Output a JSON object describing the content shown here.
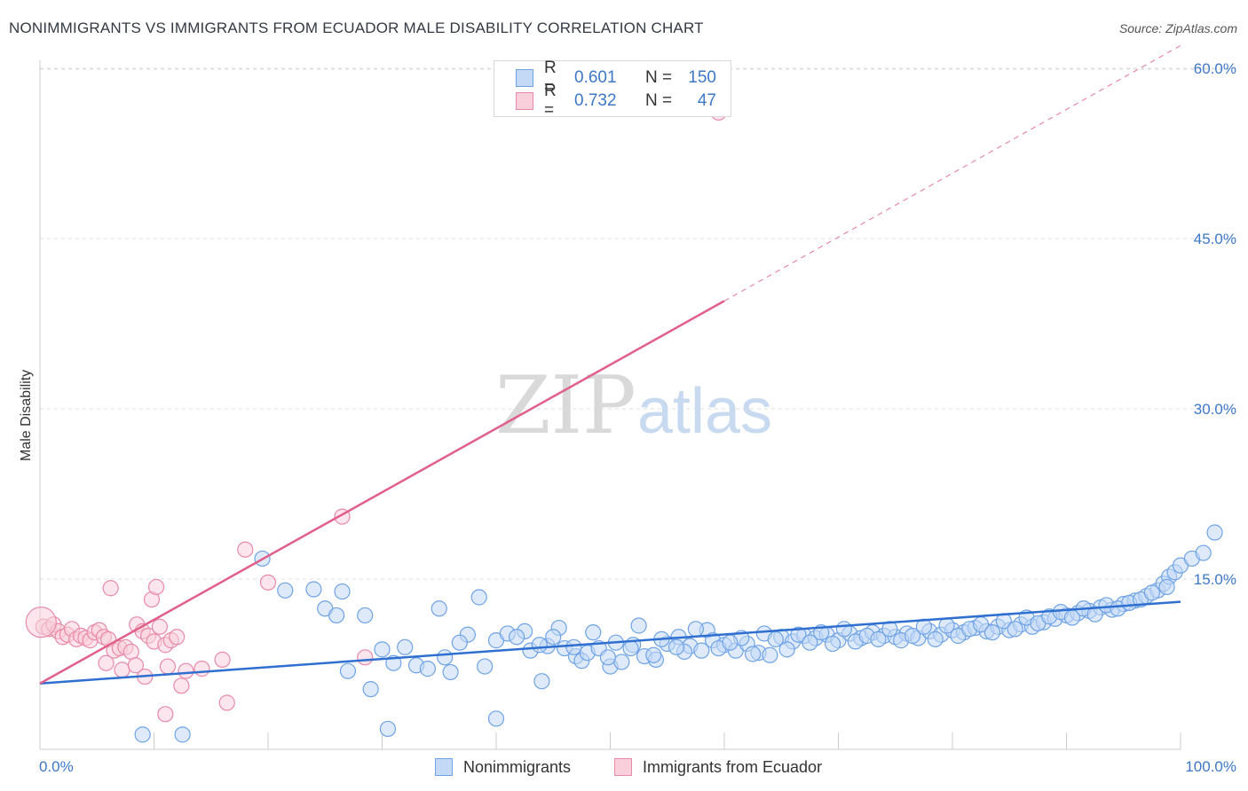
{
  "title": "NONIMMIGRANTS VS IMMIGRANTS FROM ECUADOR MALE DISABILITY CORRELATION CHART",
  "source": "Source: ZipAtlas.com",
  "watermark": {
    "zip": "ZIP",
    "atlas": "atlas"
  },
  "colors": {
    "blue": "#6fa3e6",
    "blue_fill": "#c3d9f6",
    "blue_line": "#2f6fd0",
    "pink": "#e88aa8",
    "pink_fill": "#f9cfdc",
    "pink_line": "#e0608a",
    "axis_text": "#3d78c7",
    "grid": "#dddddd"
  },
  "legend": {
    "rows": [
      {
        "r_label": "R =",
        "r_value": "0.601",
        "n_label": "N =",
        "n_value": "150"
      },
      {
        "r_label": "R =",
        "r_value": "0.732",
        "n_label": "N =",
        "n_value": "47"
      }
    ]
  },
  "bottom_legend": {
    "nonimmigrants": "Nonimmigrants",
    "immigrants": "Immigrants from Ecuador"
  },
  "chart_data": {
    "type": "scatter",
    "title": "NONIMMIGRANTS VS IMMIGRANTS FROM ECUADOR MALE DISABILITY CORRELATION CHART",
    "xlabel": "",
    "ylabel": "Male Disability",
    "xlim": [
      0,
      100
    ],
    "ylim": [
      0,
      62
    ],
    "x_tick_labels": [
      "0.0%",
      "100.0%"
    ],
    "y_ticks": [
      15,
      30,
      45,
      60
    ],
    "y_tick_labels": [
      "15.0%",
      "30.0%",
      "45.0%",
      "60.0%"
    ],
    "series": [
      {
        "name": "Nonimmigrants",
        "color": "#6fa3e6",
        "trend": {
          "x0": 0,
          "y0": 5.8,
          "x1": 100,
          "y1": 13.0,
          "dashed_to": null
        },
        "points": [
          [
            9.0,
            1.3
          ],
          [
            12.5,
            1.3
          ],
          [
            30.5,
            1.8
          ],
          [
            40.0,
            2.7
          ],
          [
            29.0,
            5.3
          ],
          [
            44.0,
            6.0
          ],
          [
            19.5,
            16.8
          ],
          [
            21.5,
            14.0
          ],
          [
            24.0,
            14.1
          ],
          [
            26.5,
            13.9
          ],
          [
            25.0,
            12.4
          ],
          [
            26.0,
            11.8
          ],
          [
            28.5,
            11.8
          ],
          [
            35.0,
            12.4
          ],
          [
            38.5,
            13.4
          ],
          [
            31.0,
            7.6
          ],
          [
            27.0,
            6.9
          ],
          [
            33.0,
            7.4
          ],
          [
            34.0,
            7.1
          ],
          [
            36.0,
            6.8
          ],
          [
            39.0,
            7.3
          ],
          [
            35.5,
            8.1
          ],
          [
            30.0,
            8.8
          ],
          [
            32.0,
            9.0
          ],
          [
            37.5,
            10.1
          ],
          [
            40.0,
            9.6
          ],
          [
            41.0,
            10.2
          ],
          [
            42.5,
            10.4
          ],
          [
            43.0,
            8.7
          ],
          [
            44.5,
            9.1
          ],
          [
            45.5,
            10.7
          ],
          [
            46.0,
            8.9
          ],
          [
            47.0,
            8.2
          ],
          [
            47.5,
            7.8
          ],
          [
            48.0,
            8.5
          ],
          [
            49.0,
            8.9
          ],
          [
            50.0,
            7.3
          ],
          [
            51.0,
            7.7
          ],
          [
            52.0,
            9.2
          ],
          [
            53.0,
            8.2
          ],
          [
            54.0,
            7.9
          ],
          [
            55.0,
            9.3
          ],
          [
            56.0,
            9.9
          ],
          [
            57.0,
            9.1
          ],
          [
            58.0,
            8.7
          ],
          [
            58.5,
            10.5
          ],
          [
            59.0,
            9.6
          ],
          [
            60.0,
            9.2
          ],
          [
            61.0,
            8.7
          ],
          [
            62.0,
            9.3
          ],
          [
            63.0,
            8.5
          ],
          [
            63.5,
            10.2
          ],
          [
            64.0,
            8.3
          ],
          [
            65.0,
            9.9
          ],
          [
            66.0,
            9.5
          ],
          [
            67.0,
            10.0
          ],
          [
            68.0,
            9.8
          ],
          [
            69.0,
            10.1
          ],
          [
            70.0,
            9.6
          ],
          [
            71.0,
            10.2
          ],
          [
            72.0,
            9.8
          ],
          [
            73.0,
            10.3
          ],
          [
            74.0,
            10.0
          ],
          [
            75.0,
            9.9
          ],
          [
            76.0,
            10.2
          ],
          [
            77.0,
            9.8
          ],
          [
            78.0,
            10.4
          ],
          [
            79.0,
            10.1
          ],
          [
            80.0,
            10.5
          ],
          [
            81.0,
            10.3
          ],
          [
            82.0,
            10.7
          ],
          [
            83.0,
            10.4
          ],
          [
            84.0,
            10.8
          ],
          [
            85.0,
            10.5
          ],
          [
            86.0,
            11.0
          ],
          [
            87.0,
            10.8
          ],
          [
            88.0,
            11.2
          ],
          [
            89.0,
            11.5
          ],
          [
            90.0,
            11.8
          ],
          [
            91.0,
            12.0
          ],
          [
            92.0,
            12.2
          ],
          [
            93.0,
            12.5
          ],
          [
            94.0,
            12.3
          ],
          [
            95.0,
            12.8
          ],
          [
            96.0,
            13.1
          ],
          [
            97.0,
            13.5
          ],
          [
            98.0,
            14.0
          ],
          [
            98.5,
            14.6
          ],
          [
            99.0,
            15.2
          ],
          [
            99.5,
            15.6
          ],
          [
            100.0,
            16.2
          ],
          [
            101.0,
            16.8
          ],
          [
            102.0,
            17.3
          ],
          [
            103.0,
            19.1
          ],
          [
            48.5,
            10.3
          ],
          [
            50.5,
            9.4
          ],
          [
            52.5,
            10.9
          ],
          [
            54.5,
            9.7
          ],
          [
            56.5,
            8.6
          ],
          [
            57.5,
            10.6
          ],
          [
            59.5,
            8.9
          ],
          [
            61.5,
            9.8
          ],
          [
            62.5,
            8.4
          ],
          [
            64.5,
            9.7
          ],
          [
            65.5,
            8.8
          ],
          [
            66.5,
            10.1
          ],
          [
            67.5,
            9.4
          ],
          [
            68.5,
            10.3
          ],
          [
            69.5,
            9.3
          ],
          [
            70.5,
            10.6
          ],
          [
            71.5,
            9.5
          ],
          [
            72.5,
            10.0
          ],
          [
            73.5,
            9.7
          ],
          [
            74.5,
            10.6
          ],
          [
            75.5,
            9.6
          ],
          [
            76.5,
            10.0
          ],
          [
            77.5,
            10.8
          ],
          [
            78.5,
            9.7
          ],
          [
            79.5,
            10.9
          ],
          [
            80.5,
            10.0
          ],
          [
            81.5,
            10.6
          ],
          [
            82.5,
            11.0
          ],
          [
            83.5,
            10.3
          ],
          [
            84.5,
            11.3
          ],
          [
            85.5,
            10.6
          ],
          [
            86.5,
            11.6
          ],
          [
            87.5,
            11.1
          ],
          [
            88.5,
            11.7
          ],
          [
            89.5,
            12.1
          ],
          [
            90.5,
            11.6
          ],
          [
            91.5,
            12.4
          ],
          [
            92.5,
            11.9
          ],
          [
            93.5,
            12.7
          ],
          [
            94.5,
            12.4
          ],
          [
            95.5,
            12.9
          ],
          [
            96.5,
            13.2
          ],
          [
            97.5,
            13.8
          ],
          [
            98.8,
            14.3
          ],
          [
            36.8,
            9.4
          ],
          [
            41.8,
            9.9
          ],
          [
            43.8,
            9.2
          ],
          [
            45.0,
            9.9
          ],
          [
            46.8,
            9.0
          ],
          [
            49.8,
            8.1
          ],
          [
            51.8,
            8.9
          ],
          [
            53.8,
            8.3
          ],
          [
            55.8,
            9.0
          ],
          [
            60.5,
            9.4
          ]
        ]
      },
      {
        "name": "Immigrants from Ecuador",
        "color": "#e88aa8",
        "trend": {
          "x0": 0,
          "y0": 5.8,
          "x1": 60,
          "y1": 39.5,
          "dashed_to": [
            100,
            62
          ]
        },
        "points": [
          [
            0.3,
            10.8
          ],
          [
            0.8,
            10.6
          ],
          [
            1.2,
            11.0
          ],
          [
            1.6,
            10.4
          ],
          [
            2.0,
            9.9
          ],
          [
            2.4,
            10.1
          ],
          [
            2.8,
            10.6
          ],
          [
            3.2,
            9.7
          ],
          [
            3.6,
            10.0
          ],
          [
            4.0,
            9.8
          ],
          [
            4.4,
            9.6
          ],
          [
            4.8,
            10.3
          ],
          [
            5.2,
            10.5
          ],
          [
            5.6,
            9.9
          ],
          [
            6.0,
            9.7
          ],
          [
            6.5,
            8.7
          ],
          [
            7.0,
            8.9
          ],
          [
            7.5,
            9.0
          ],
          [
            8.0,
            8.6
          ],
          [
            8.5,
            11.0
          ],
          [
            9.0,
            10.4
          ],
          [
            9.5,
            10.0
          ],
          [
            10.0,
            9.5
          ],
          [
            10.5,
            10.8
          ],
          [
            11.0,
            9.2
          ],
          [
            11.5,
            9.6
          ],
          [
            12.0,
            9.9
          ],
          [
            6.2,
            14.2
          ],
          [
            9.8,
            13.2
          ],
          [
            10.2,
            14.3
          ],
          [
            5.8,
            7.6
          ],
          [
            7.2,
            7.0
          ],
          [
            8.4,
            7.4
          ],
          [
            9.2,
            6.4
          ],
          [
            11.2,
            7.3
          ],
          [
            12.8,
            6.9
          ],
          [
            14.2,
            7.1
          ],
          [
            16.0,
            7.9
          ],
          [
            12.4,
            5.6
          ],
          [
            11.0,
            3.1
          ],
          [
            16.4,
            4.1
          ],
          [
            18.0,
            17.6
          ],
          [
            20.0,
            14.7
          ],
          [
            26.5,
            20.5
          ],
          [
            28.5,
            8.1
          ],
          [
            59.5,
            56.1
          ],
          [
            0.1,
            11.2
          ]
        ]
      }
    ]
  }
}
